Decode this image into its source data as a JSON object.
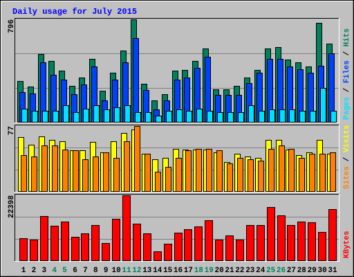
{
  "chart_data": {
    "type": "bar",
    "title": "Daily usage for July 2015",
    "legend_separator": " / ",
    "categories": [
      "1",
      "2",
      "3",
      "4",
      "5",
      "6",
      "7",
      "8",
      "9",
      "10",
      "11",
      "12",
      "13",
      "14",
      "15",
      "16",
      "17",
      "18",
      "19",
      "20",
      "21",
      "22",
      "23",
      "24",
      "25",
      "26",
      "27",
      "28",
      "29",
      "30",
      "31"
    ],
    "category_colors": [
      "#000000",
      "#000000",
      "#000000",
      "#00805c",
      "#00805c",
      "#000000",
      "#000000",
      "#000000",
      "#000000",
      "#000000",
      "#00805c",
      "#00805c",
      "#000000",
      "#000000",
      "#000000",
      "#000000",
      "#000000",
      "#00805c",
      "#00805c",
      "#000000",
      "#000000",
      "#000000",
      "#000000",
      "#000000",
      "#00805c",
      "#00805c",
      "#000000",
      "#000000",
      "#000000",
      "#000000",
      "#000000"
    ],
    "panels": [
      {
        "ylim": [
          0,
          796
        ],
        "yticks": [
          796
        ],
        "series": [
          {
            "name": "Hits",
            "color": "#00805c",
            "values": [
              317,
              274,
              527,
              473,
              398,
              280,
              344,
              489,
              242,
              382,
              554,
              796,
              296,
              167,
              215,
              398,
              403,
              473,
              570,
              253,
              253,
              280,
              344,
              403,
              570,
              581,
              484,
              463,
              430,
              769,
              608
            ]
          },
          {
            "name": "Files",
            "color": "#0040ff",
            "values": [
              231,
              221,
              463,
              366,
              328,
              215,
              290,
              430,
              167,
              328,
              463,
              651,
              247,
              97,
              167,
              328,
              344,
              420,
              506,
              210,
              210,
              210,
              301,
              382,
              489,
              489,
              430,
              409,
              382,
              436,
              532
            ]
          },
          {
            "name": "Pages",
            "color": "#00e0ff",
            "values": [
              102,
              86,
              86,
              86,
              129,
              75,
              102,
              129,
              97,
              113,
              129,
              75,
              75,
              48,
              86,
              97,
              86,
              102,
              86,
              75,
              75,
              75,
              129,
              86,
              97,
              97,
              97,
              86,
              86,
              264,
              86
            ]
          }
        ]
      },
      {
        "ylim": [
          0,
          77
        ],
        "yticks": [
          77
        ],
        "series": [
          {
            "name": "Visits",
            "color": "#ffff00",
            "values": [
              64,
              55,
              65,
              61,
              59,
              48,
              48,
              58,
              46,
              59,
              69,
              73,
              44,
              38,
              39,
              50,
              49,
              49,
              49,
              46,
              34,
              44,
              41,
              39,
              61,
              61,
              49,
              43,
              46,
              61,
              44
            ]
          },
          {
            "name": "Sites",
            "color": "#ff8000",
            "values": [
              43,
              41,
              54,
              54,
              49,
              48,
              38,
              41,
              46,
              39,
              59,
              77,
              44,
              23,
              29,
              39,
              48,
              50,
              50,
              48,
              33,
              39,
              38,
              36,
              50,
              54,
              50,
              39,
              44,
              44,
              46
            ]
          }
        ]
      },
      {
        "ylim": [
          0,
          22398
        ],
        "yticks": [
          22398
        ],
        "series": [
          {
            "name": "KBytes",
            "color": "#ff0000",
            "values": [
              7548,
              7061,
              15340,
              11931,
              13392,
              8035,
              9253,
              12175,
              5844,
              14366,
              22398,
              12661,
              9253,
              3165,
              5600,
              9496,
              10713,
              11687,
              13879,
              7061,
              8522,
              7061,
              12175,
              12175,
              18262,
              15583,
              12175,
              13392,
              13148,
              9739,
              17531
            ]
          }
        ]
      }
    ]
  }
}
